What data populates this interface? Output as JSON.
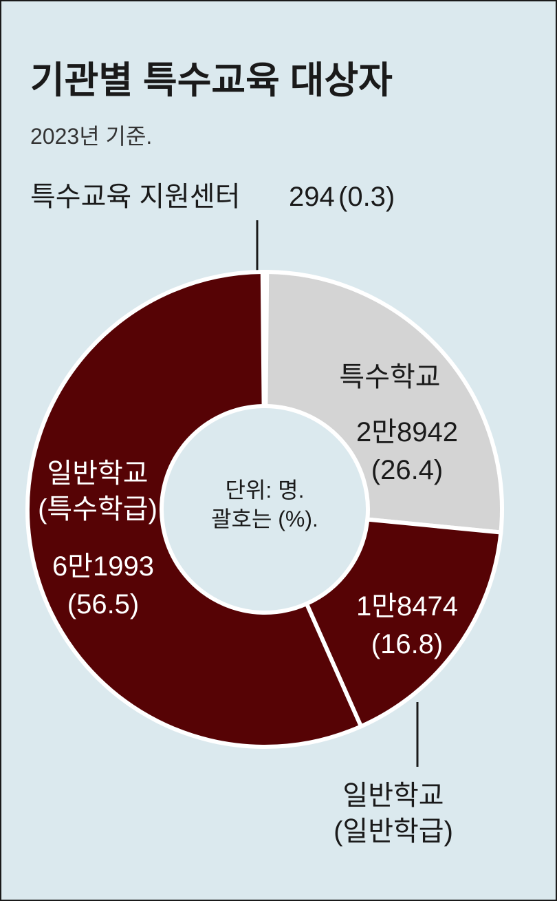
{
  "chart_data": {
    "type": "donut",
    "title": "기관별 특수교육 대상자",
    "subtitle": "2023년 기준.",
    "note": "단위: 명.\n괄호는 (%).",
    "categories": [
      "특수교육 지원센터",
      "특수학교",
      "일반학교\n(일반학급)",
      "일반학교\n(특수학급)"
    ],
    "values": [
      294,
      28942,
      18474,
      61993
    ],
    "value_labels": [
      "294",
      "2만8942",
      "1만8474",
      "6만1993"
    ],
    "percents": [
      0.3,
      26.4,
      16.8,
      56.5
    ],
    "percent_labels": [
      "(0.3)",
      "(26.4)",
      "(16.8)",
      "(56.5)"
    ],
    "colors": [
      "#ffffff",
      "#d4d4d4",
      "#560305",
      "#560305"
    ]
  }
}
